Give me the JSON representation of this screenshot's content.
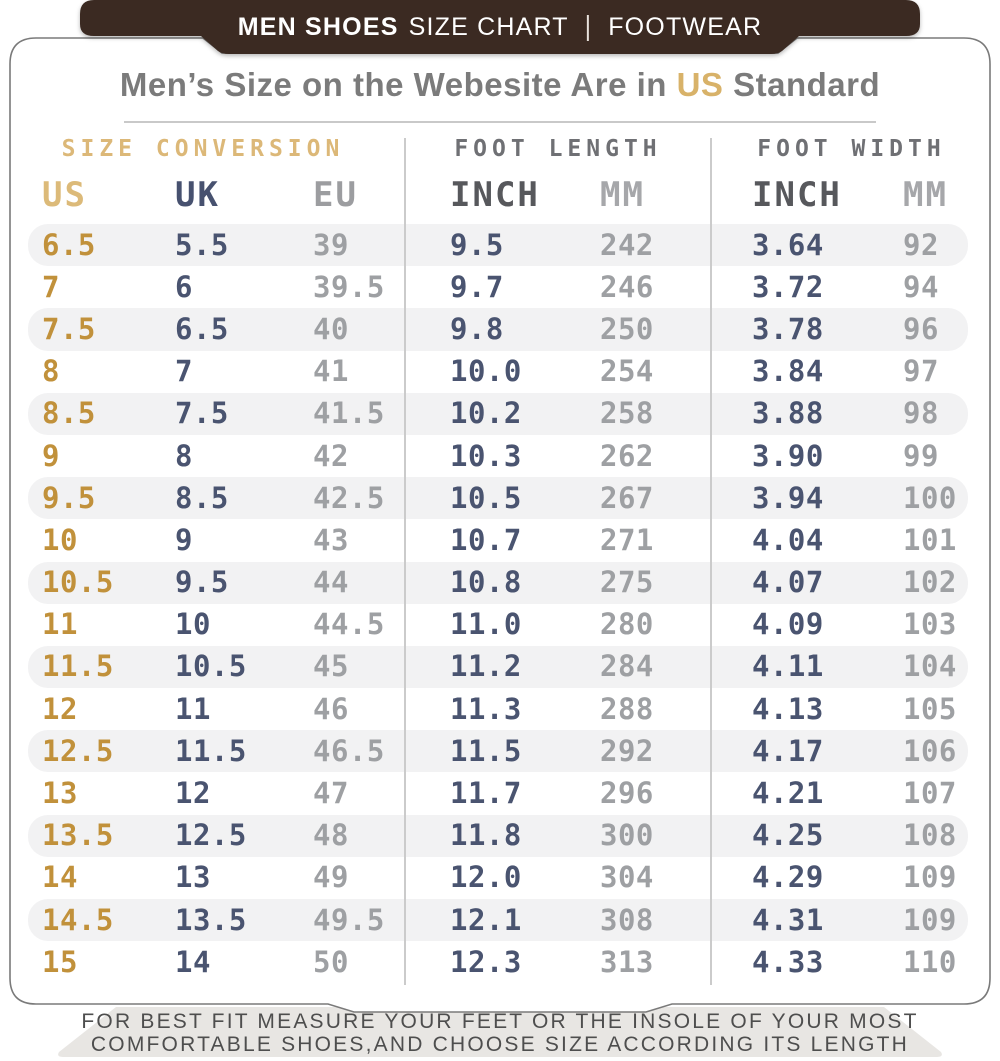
{
  "banner": {
    "brand": "MEN SHOES",
    "subtitle": "SIZE CHART",
    "separator": "|",
    "category": "FOOTWEAR"
  },
  "title": {
    "prefix": "Men’s Size on the Webesite Are in ",
    "highlight": "US",
    "suffix": " Standard"
  },
  "table": {
    "group_labels": [
      "SIZE CONVERSION",
      "FOOT LENGTH",
      "FOOT WIDTH"
    ],
    "col_labels": [
      "US",
      "UK",
      "EU",
      "INCH",
      "MM",
      "INCH",
      "MM"
    ]
  },
  "footer": {
    "line1": "FOR BEST FIT MEASURE YOUR FEET OR THE INSOLE OF YOUR MOST",
    "line2": "COMFORTABLE SHOES,AND CHOOSE SIZE ACCORDING ITS LENGTH"
  },
  "colors": {
    "banner_brown": "#3b2b23",
    "gold_accent": "#dcb878",
    "gold_values": "#c1913b",
    "navy_values": "#4a5470",
    "gray_values": "#9ea0a3",
    "row_stripe": "#f2f2f3",
    "footer_band": "#e8e6e3"
  },
  "chart_data": {
    "type": "table",
    "title": "Men’s Size on the Webesite Are in US Standard",
    "column_groups": [
      "SIZE CONVERSION",
      "FOOT LENGTH",
      "FOOT WIDTH"
    ],
    "columns": [
      "US",
      "UK",
      "EU",
      "FOOT LENGTH INCH",
      "FOOT LENGTH MM",
      "FOOT WIDTH INCH",
      "FOOT WIDTH MM"
    ],
    "rows": [
      [
        "6.5",
        "5.5",
        "39",
        "9.5",
        "242",
        "3.64",
        "92"
      ],
      [
        "7",
        "6",
        "39.5",
        "9.7",
        "246",
        "3.72",
        "94"
      ],
      [
        "7.5",
        "6.5",
        "40",
        "9.8",
        "250",
        "3.78",
        "96"
      ],
      [
        "8",
        "7",
        "41",
        "10.0",
        "254",
        "3.84",
        "97"
      ],
      [
        "8.5",
        "7.5",
        "41.5",
        "10.2",
        "258",
        "3.88",
        "98"
      ],
      [
        "9",
        "8",
        "42",
        "10.3",
        "262",
        "3.90",
        "99"
      ],
      [
        "9.5",
        "8.5",
        "42.5",
        "10.5",
        "267",
        "3.94",
        "100"
      ],
      [
        "10",
        "9",
        "43",
        "10.7",
        "271",
        "4.04",
        "101"
      ],
      [
        "10.5",
        "9.5",
        "44",
        "10.8",
        "275",
        "4.07",
        "102"
      ],
      [
        "11",
        "10",
        "44.5",
        "11.0",
        "280",
        "4.09",
        "103"
      ],
      [
        "11.5",
        "10.5",
        "45",
        "11.2",
        "284",
        "4.11",
        "104"
      ],
      [
        "12",
        "11",
        "46",
        "11.3",
        "288",
        "4.13",
        "105"
      ],
      [
        "12.5",
        "11.5",
        "46.5",
        "11.5",
        "292",
        "4.17",
        "106"
      ],
      [
        "13",
        "12",
        "47",
        "11.7",
        "296",
        "4.21",
        "107"
      ],
      [
        "13.5",
        "12.5",
        "48",
        "11.8",
        "300",
        "4.25",
        "108"
      ],
      [
        "14",
        "13",
        "49",
        "12.0",
        "304",
        "4.29",
        "109"
      ],
      [
        "14.5",
        "13.5",
        "49.5",
        "12.1",
        "308",
        "4.31",
        "109"
      ],
      [
        "15",
        "14",
        "50",
        "12.3",
        "313",
        "4.33",
        "110"
      ]
    ]
  }
}
